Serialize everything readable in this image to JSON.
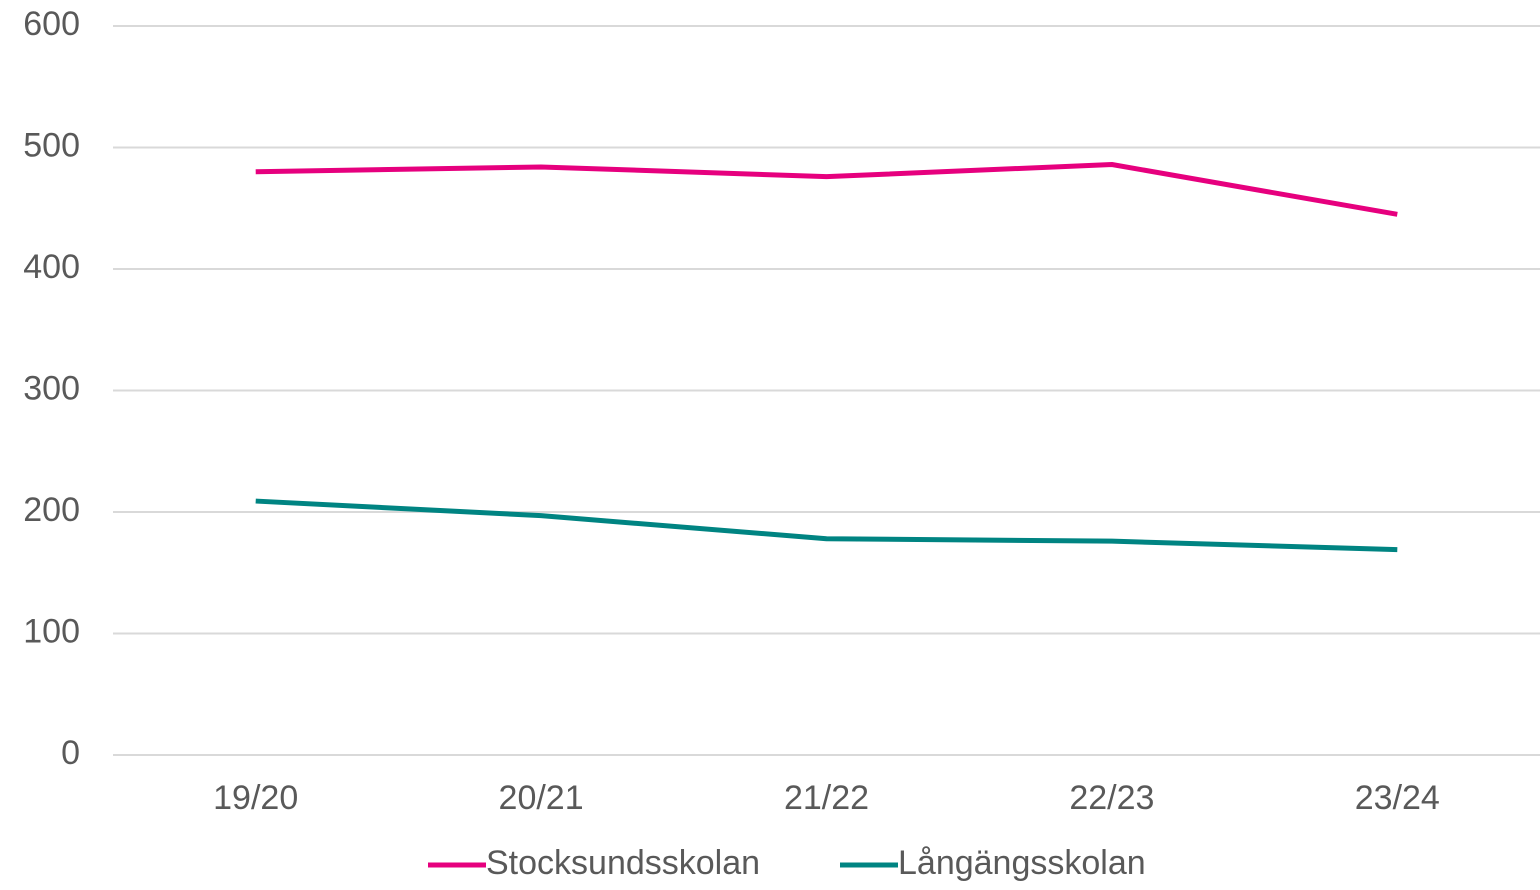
{
  "chart_data": {
    "type": "line",
    "categories": [
      "19/20",
      "20/21",
      "21/22",
      "22/23",
      "23/24"
    ],
    "series": [
      {
        "name": "Stocksundsskolan",
        "color": "#e6007e",
        "values": [
          480,
          484,
          476,
          486,
          445
        ]
      },
      {
        "name": "Långängsskolan",
        "color": "#008482",
        "values": [
          209,
          197,
          178,
          176,
          169
        ]
      }
    ],
    "ylim": [
      0,
      600
    ],
    "yticks": [
      0,
      100,
      200,
      300,
      400,
      500,
      600
    ],
    "grid": true,
    "legend": "bottom"
  }
}
